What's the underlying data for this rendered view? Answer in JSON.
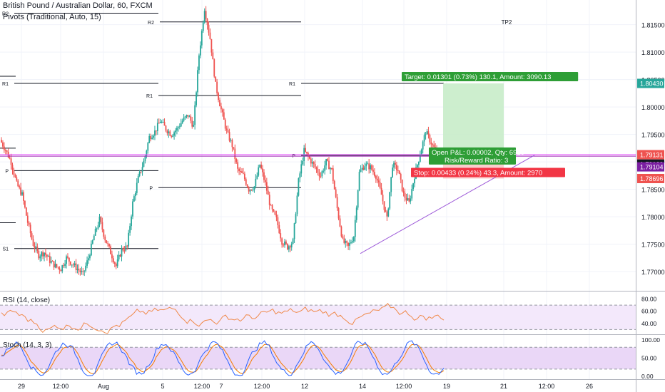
{
  "title": "British Pound / Australian Dollar, 60, FXCM",
  "pivots_label": "Pivots (Traditional, Auto, 15)",
  "tp2_label": "TP2",
  "colors": {
    "up": "#26a69a",
    "down": "#ef5350",
    "pivot": "#131722",
    "target_fill": "#c8ecc9",
    "stop_fill": "#f9c9c8",
    "target_label": "#2e9e36",
    "stop_label": "#f23645",
    "trendline": "#9c58d8",
    "hline": "#e040fb",
    "rsi_line": "#f08a4b",
    "stoch_k": "#2962ff",
    "stoch_d": "#f57c00"
  },
  "trade": {
    "target_text": "Target: 0.01301 (0.73%) 130.1, Amount: 3090.13",
    "open_text": "Open P&L: 0.00002, Qty: 6928",
    "rr_text": "Risk/Reward Ratio: 3",
    "stop_text": "Stop: 0.00433 (0.24%) 43.3, Amount: 2970"
  },
  "price_axis": {
    "ticks": [
      "1.81500",
      "1.81000",
      "1.80500",
      "1.80000",
      "1.79500",
      "1.79000",
      "1.78500",
      "1.78000",
      "1.77500",
      "1.77000"
    ],
    "badges": [
      {
        "text": "1.80430",
        "color": "#26a69a",
        "textColor": "#ffffff"
      },
      {
        "text": "1.79131",
        "color": "#ef5350",
        "textColor": "#ffffff"
      },
      {
        "text": "55:22",
        "color": "#ffffff",
        "textColor": "#131722"
      },
      {
        "text": "1.79129",
        "color": "#131722",
        "textColor": "#ffffff"
      },
      {
        "text": "1.79104",
        "color": "#7b1fa2",
        "textColor": "#ffffff"
      },
      {
        "text": "1.78696",
        "color": "#ef5350",
        "textColor": "#ffffff"
      }
    ]
  },
  "time_axis": [
    "29",
    "12:00",
    "Aug",
    "5",
    "12:00",
    "7",
    "12:00",
    "12",
    "14",
    "12:00",
    "19",
    "21",
    "12:00",
    "26"
  ],
  "rsi": {
    "label": "RSI (14, close)",
    "ticks": [
      "80.00",
      "60.00",
      "40.00"
    ]
  },
  "stoch": {
    "label": "Stoch (14, 3, 3)",
    "ticks": [
      "100.00",
      "50.00",
      "0.00"
    ]
  },
  "chart_data": {
    "type": "candlestick",
    "symbol": "GBPAUD",
    "timeframe": "60",
    "ylim": [
      1.7665,
      1.8195
    ],
    "pivot_levels": [
      {
        "label": "R2",
        "value": 1.8171
      },
      {
        "label": "R2",
        "value": 1.8155
      },
      {
        "label": "R1",
        "value": 1.8043
      },
      {
        "label": "R1",
        "value": 1.8021
      },
      {
        "label": "R1",
        "value": 1.8043
      },
      {
        "label": "P",
        "value": 1.7884
      },
      {
        "label": "P",
        "value": 1.7853
      },
      {
        "label": "P",
        "value": 1.7912
      },
      {
        "label": "S1",
        "value": 1.7742
      }
    ],
    "close_path": [
      1.794,
      1.7922,
      1.79,
      1.786,
      1.784,
      1.779,
      1.775,
      1.773,
      1.7735,
      1.772,
      1.771,
      1.7705,
      1.7725,
      1.7715,
      1.7705,
      1.7695,
      1.7725,
      1.7765,
      1.7795,
      1.776,
      1.7735,
      1.771,
      1.774,
      1.7745,
      1.7825,
      1.787,
      1.79,
      1.7945,
      1.7955,
      1.7975,
      1.796,
      1.795,
      1.796,
      1.7975,
      1.7985,
      1.7965,
      1.8095,
      1.818,
      1.8125,
      1.804,
      1.7995,
      1.7955,
      1.793,
      1.7885,
      1.7875,
      1.785,
      1.7855,
      1.7895,
      1.786,
      1.7815,
      1.7795,
      1.7755,
      1.7745,
      1.7755,
      1.7865,
      1.792,
      1.7905,
      1.789,
      1.7875,
      1.79,
      1.7885,
      1.7815,
      1.7755,
      1.7745,
      1.7765,
      1.788,
      1.7895,
      1.789,
      1.7875,
      1.784,
      1.7795,
      1.7895,
      1.7885,
      1.784,
      1.7825,
      1.7875,
      1.7915,
      1.7955,
      1.7935,
      1.7915
    ]
  }
}
